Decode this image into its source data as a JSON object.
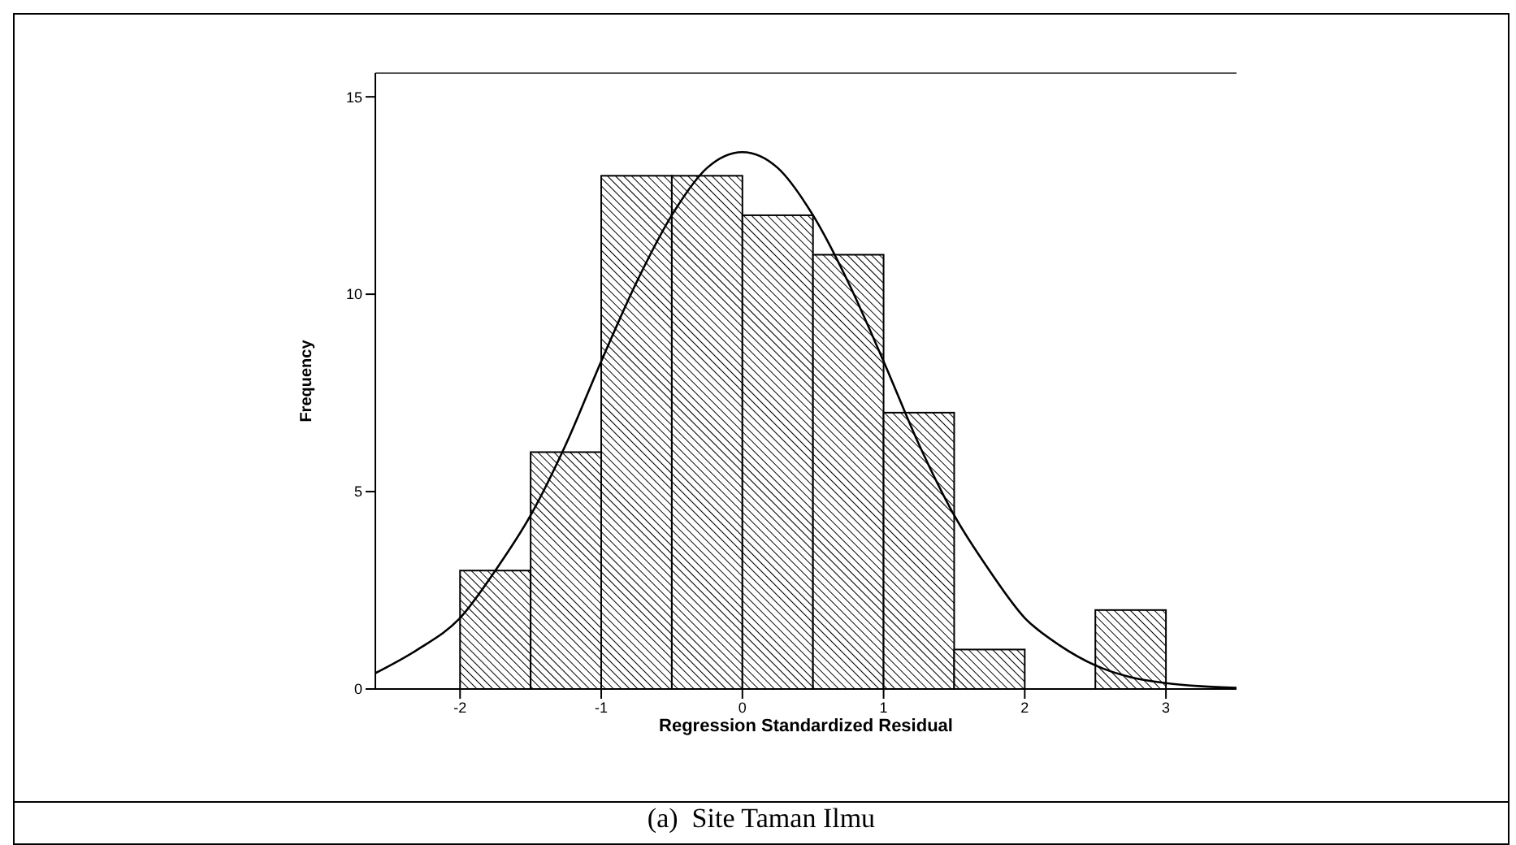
{
  "chart_data": {
    "type": "histogram",
    "xlabel": "Regression Standardized Residual",
    "ylabel": "Frequency",
    "bins": [
      -2,
      -1.5,
      -1,
      -0.5,
      0,
      0.5,
      1,
      1.5,
      2,
      2.5,
      3
    ],
    "series": [
      {
        "color": "#000000",
        "values": [
          3,
          6,
          13,
          13,
          12,
          11,
          7,
          1,
          0,
          2
        ]
      },
      {
        "type": "line",
        "color": "#000000",
        "x": [
          -2.6,
          -2.3,
          -2,
          -1.75,
          -1.5,
          -1.25,
          -1,
          -0.75,
          -0.5,
          -0.25,
          0,
          0.25,
          0.5,
          0.75,
          1,
          1.25,
          1.5,
          1.75,
          2,
          2.25,
          2.5,
          2.75,
          3,
          3.25,
          3.5
        ],
        "values": [
          0.4,
          1.0,
          1.8,
          3.0,
          4.4,
          6.2,
          8.3,
          10.3,
          12,
          13.2,
          13.6,
          13.2,
          12,
          10.3,
          8.3,
          6.2,
          4.4,
          3.0,
          1.8,
          1.1,
          0.6,
          0.3,
          0.15,
          0.07,
          0.03
        ]
      }
    ],
    "xlim": [
      -2.6,
      3.5
    ],
    "xticks": [
      -2,
      -1,
      0,
      1,
      2,
      3
    ],
    "ylim": [
      0,
      15.6
    ],
    "yticks": [
      0,
      5,
      10,
      15
    ],
    "annotations": [
      "(a)  Site Taman Ilmu"
    ]
  }
}
